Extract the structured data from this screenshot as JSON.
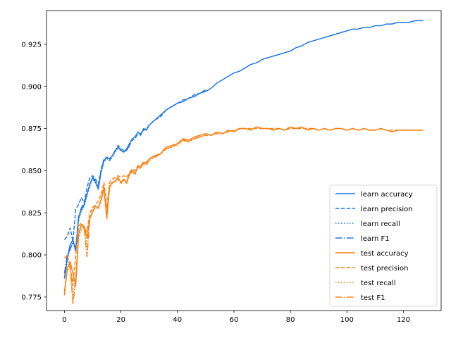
{
  "chart_data": {
    "type": "line",
    "title": "",
    "xlabel": "",
    "ylabel": "",
    "xlim": [
      -6.35,
      133.35
    ],
    "ylim": [
      0.767,
      0.945
    ],
    "xticks": [
      0,
      20,
      40,
      60,
      80,
      100,
      120
    ],
    "yticks": [
      0.775,
      0.8,
      0.825,
      0.85,
      0.875,
      0.9,
      0.925
    ],
    "grid": false,
    "legend_position": "bottom-right",
    "colors": {
      "learn": "#1f77e4",
      "test": "#ff7f0e"
    },
    "series": [
      {
        "name": "learn accuracy",
        "group": "learn",
        "linestyle": "solid",
        "x": [
          0,
          1,
          2,
          3,
          4,
          5,
          6,
          7,
          8,
          9,
          10,
          11,
          12,
          13,
          14,
          15,
          16,
          17,
          18,
          19,
          20,
          21,
          22,
          23,
          24,
          25,
          26,
          27,
          28,
          29,
          30,
          32,
          34,
          36,
          38,
          40,
          42,
          44,
          46,
          48,
          50,
          52,
          54,
          56,
          58,
          60,
          62,
          64,
          66,
          68,
          70,
          72,
          74,
          76,
          78,
          80,
          82,
          84,
          86,
          88,
          90,
          92,
          94,
          96,
          98,
          100,
          102,
          104,
          106,
          108,
          110,
          112,
          114,
          116,
          118,
          120,
          122,
          124,
          126,
          127
        ],
        "y": [
          0.786,
          0.798,
          0.806,
          0.809,
          0.802,
          0.822,
          0.827,
          0.83,
          0.836,
          0.842,
          0.846,
          0.843,
          0.839,
          0.85,
          0.856,
          0.858,
          0.857,
          0.859,
          0.862,
          0.864,
          0.862,
          0.861,
          0.863,
          0.866,
          0.869,
          0.87,
          0.873,
          0.871,
          0.875,
          0.874,
          0.877,
          0.88,
          0.883,
          0.886,
          0.888,
          0.89,
          0.891,
          0.893,
          0.894,
          0.896,
          0.897,
          0.899,
          0.902,
          0.904,
          0.906,
          0.908,
          0.909,
          0.911,
          0.913,
          0.914,
          0.916,
          0.917,
          0.918,
          0.919,
          0.92,
          0.921,
          0.923,
          0.924,
          0.926,
          0.927,
          0.928,
          0.929,
          0.93,
          0.931,
          0.932,
          0.933,
          0.934,
          0.934,
          0.935,
          0.935,
          0.936,
          0.936,
          0.937,
          0.937,
          0.938,
          0.938,
          0.938,
          0.939,
          0.939,
          0.939
        ]
      },
      {
        "name": "learn precision",
        "group": "learn",
        "linestyle": "dashed",
        "x": [
          0,
          1,
          2,
          3,
          4,
          5,
          6,
          7,
          8,
          9,
          10,
          11,
          12,
          13,
          14,
          15,
          16,
          17,
          18,
          19,
          20,
          21,
          22,
          23,
          24,
          25,
          26,
          27,
          28,
          29,
          30,
          32,
          34,
          36,
          38,
          40,
          42,
          44,
          46,
          48,
          50
        ],
        "y": [
          0.809,
          0.811,
          0.816,
          0.808,
          0.827,
          0.83,
          0.834,
          0.831,
          0.84,
          0.846,
          0.847,
          0.845,
          0.842,
          0.851,
          0.857,
          0.858,
          0.856,
          0.859,
          0.862,
          0.865,
          0.863,
          0.862,
          0.862,
          0.865,
          0.868,
          0.869,
          0.872,
          0.872,
          0.874,
          0.875,
          0.877,
          0.88,
          0.882,
          0.886,
          0.888,
          0.89,
          0.892,
          0.893,
          0.895,
          0.896,
          0.898
        ]
      },
      {
        "name": "learn recall",
        "group": "learn",
        "linestyle": "dotted",
        "x": [
          0,
          1,
          2,
          3,
          4,
          5,
          6,
          7,
          8,
          9,
          10,
          11,
          12,
          13,
          14,
          15,
          16,
          17,
          18,
          19,
          20,
          21,
          22,
          23
        ],
        "y": [
          0.786,
          0.796,
          0.804,
          0.807,
          0.803,
          0.82,
          0.826,
          0.829,
          0.835,
          0.841,
          0.845,
          0.843,
          0.84,
          0.849,
          0.855,
          0.857,
          0.856,
          0.858,
          0.861,
          0.863,
          0.862,
          0.861,
          0.862,
          0.865
        ]
      },
      {
        "name": "learn F1",
        "group": "learn",
        "linestyle": "dashdot",
        "x": [
          0,
          1,
          2,
          3,
          4,
          5,
          6,
          7,
          8,
          9,
          10,
          11,
          12,
          13,
          14,
          15,
          16,
          17,
          18,
          19,
          20,
          21,
          22,
          23
        ],
        "y": [
          0.789,
          0.8,
          0.803,
          0.808,
          0.804,
          0.823,
          0.828,
          0.831,
          0.836,
          0.842,
          0.846,
          0.844,
          0.84,
          0.85,
          0.856,
          0.858,
          0.857,
          0.859,
          0.862,
          0.864,
          0.862,
          0.861,
          0.863,
          0.864
        ]
      },
      {
        "name": "test accuracy",
        "group": "test",
        "linestyle": "solid",
        "x": [
          0,
          1,
          2,
          3,
          4,
          5,
          6,
          7,
          8,
          9,
          10,
          11,
          12,
          13,
          14,
          15,
          16,
          17,
          18,
          19,
          20,
          21,
          22,
          23,
          24,
          25,
          26,
          27,
          28,
          29,
          30,
          32,
          34,
          36,
          38,
          40,
          42,
          44,
          46,
          48,
          50,
          52,
          54,
          56,
          58,
          60,
          62,
          64,
          66,
          68,
          70,
          72,
          74,
          76,
          78,
          80,
          82,
          84,
          86,
          88,
          90,
          92,
          94,
          96,
          98,
          100,
          102,
          104,
          106,
          108,
          110,
          112,
          114,
          116,
          118,
          120,
          122,
          124,
          126,
          127
        ],
        "y": [
          0.778,
          0.792,
          0.796,
          0.789,
          0.782,
          0.812,
          0.818,
          0.817,
          0.81,
          0.822,
          0.826,
          0.829,
          0.828,
          0.833,
          0.84,
          0.822,
          0.841,
          0.843,
          0.844,
          0.846,
          0.843,
          0.845,
          0.843,
          0.848,
          0.85,
          0.848,
          0.853,
          0.852,
          0.855,
          0.854,
          0.857,
          0.859,
          0.86,
          0.864,
          0.865,
          0.866,
          0.869,
          0.868,
          0.87,
          0.871,
          0.872,
          0.871,
          0.873,
          0.872,
          0.874,
          0.873,
          0.875,
          0.875,
          0.874,
          0.876,
          0.875,
          0.875,
          0.874,
          0.875,
          0.874,
          0.876,
          0.875,
          0.876,
          0.874,
          0.875,
          0.874,
          0.875,
          0.874,
          0.875,
          0.875,
          0.874,
          0.875,
          0.874,
          0.875,
          0.874,
          0.874,
          0.875,
          0.874,
          0.873,
          0.874,
          0.874,
          0.874,
          0.874,
          0.874,
          0.874
        ]
      },
      {
        "name": "test precision",
        "group": "test",
        "linestyle": "dashed",
        "x": [
          0,
          1,
          2,
          3,
          4,
          5,
          6,
          7,
          8,
          9,
          10,
          11,
          12,
          13,
          14,
          15,
          16,
          17,
          18,
          19,
          20,
          21,
          22,
          23,
          24,
          25,
          26,
          27,
          28,
          29,
          30,
          32,
          34,
          36,
          38,
          40,
          42,
          44,
          46,
          48,
          50,
          52,
          54,
          56,
          58,
          60,
          62,
          64,
          66,
          68,
          70,
          72,
          74,
          76,
          78,
          80,
          82,
          84,
          86,
          88,
          90,
          92,
          94,
          96,
          98,
          100,
          102,
          104,
          106,
          108,
          110,
          112,
          114,
          116,
          118,
          120,
          122,
          124,
          126,
          127
        ],
        "y": [
          0.798,
          0.8,
          0.793,
          0.782,
          0.8,
          0.817,
          0.819,
          0.816,
          0.814,
          0.825,
          0.828,
          0.83,
          0.832,
          0.836,
          0.843,
          0.828,
          0.843,
          0.845,
          0.846,
          0.847,
          0.846,
          0.847,
          0.846,
          0.849,
          0.851,
          0.85,
          0.853,
          0.853,
          0.855,
          0.855,
          0.857,
          0.858,
          0.86,
          0.863,
          0.864,
          0.866,
          0.868,
          0.868,
          0.869,
          0.87,
          0.871,
          0.871,
          0.872,
          0.872,
          0.873,
          0.874,
          0.875,
          0.875,
          0.875,
          0.875,
          0.875,
          0.875,
          0.875,
          0.875,
          0.874,
          0.875,
          0.875,
          0.875,
          0.875,
          0.875,
          0.874,
          0.875,
          0.874,
          0.875,
          0.875,
          0.874,
          0.875,
          0.874,
          0.875,
          0.874,
          0.874,
          0.875,
          0.874,
          0.874,
          0.874,
          0.874,
          0.874,
          0.874,
          0.874,
          0.874
        ]
      },
      {
        "name": "test recall",
        "group": "test",
        "linestyle": "dotted",
        "x": [
          0,
          1,
          2,
          3,
          4,
          5,
          6,
          7,
          8,
          9,
          10,
          11,
          12,
          13,
          14,
          15,
          16,
          17,
          18,
          19,
          20,
          21,
          22,
          23,
          24,
          25,
          26,
          27,
          28,
          29,
          30,
          32,
          34,
          36,
          38,
          40,
          42,
          44,
          46,
          48,
          50
        ],
        "y": [
          0.778,
          0.79,
          0.794,
          0.775,
          0.788,
          0.81,
          0.815,
          0.816,
          0.805,
          0.821,
          0.825,
          0.828,
          0.827,
          0.832,
          0.839,
          0.821,
          0.84,
          0.842,
          0.843,
          0.845,
          0.842,
          0.844,
          0.842,
          0.847,
          0.849,
          0.848,
          0.852,
          0.851,
          0.854,
          0.853,
          0.856,
          0.858,
          0.86,
          0.863,
          0.864,
          0.865,
          0.868,
          0.867,
          0.869,
          0.87,
          0.871
        ]
      },
      {
        "name": "test F1",
        "group": "test",
        "linestyle": "dashdot",
        "x": [
          0,
          1,
          2,
          3,
          4,
          5,
          6,
          7,
          8,
          9,
          10,
          11,
          12,
          13,
          14,
          15,
          16,
          17,
          18,
          19,
          20,
          21,
          22,
          23,
          24,
          25,
          26,
          27,
          28,
          29,
          30,
          32,
          34,
          36,
          38,
          40,
          42,
          44,
          46,
          48,
          50
        ],
        "y": [
          0.776,
          0.792,
          0.795,
          0.771,
          0.785,
          0.813,
          0.817,
          0.816,
          0.799,
          0.822,
          0.826,
          0.829,
          0.828,
          0.833,
          0.84,
          0.823,
          0.841,
          0.843,
          0.844,
          0.846,
          0.843,
          0.845,
          0.843,
          0.848,
          0.85,
          0.848,
          0.852,
          0.852,
          0.854,
          0.854,
          0.857,
          0.858,
          0.86,
          0.863,
          0.864,
          0.866,
          0.868,
          0.867,
          0.869,
          0.87,
          0.871
        ]
      }
    ]
  }
}
